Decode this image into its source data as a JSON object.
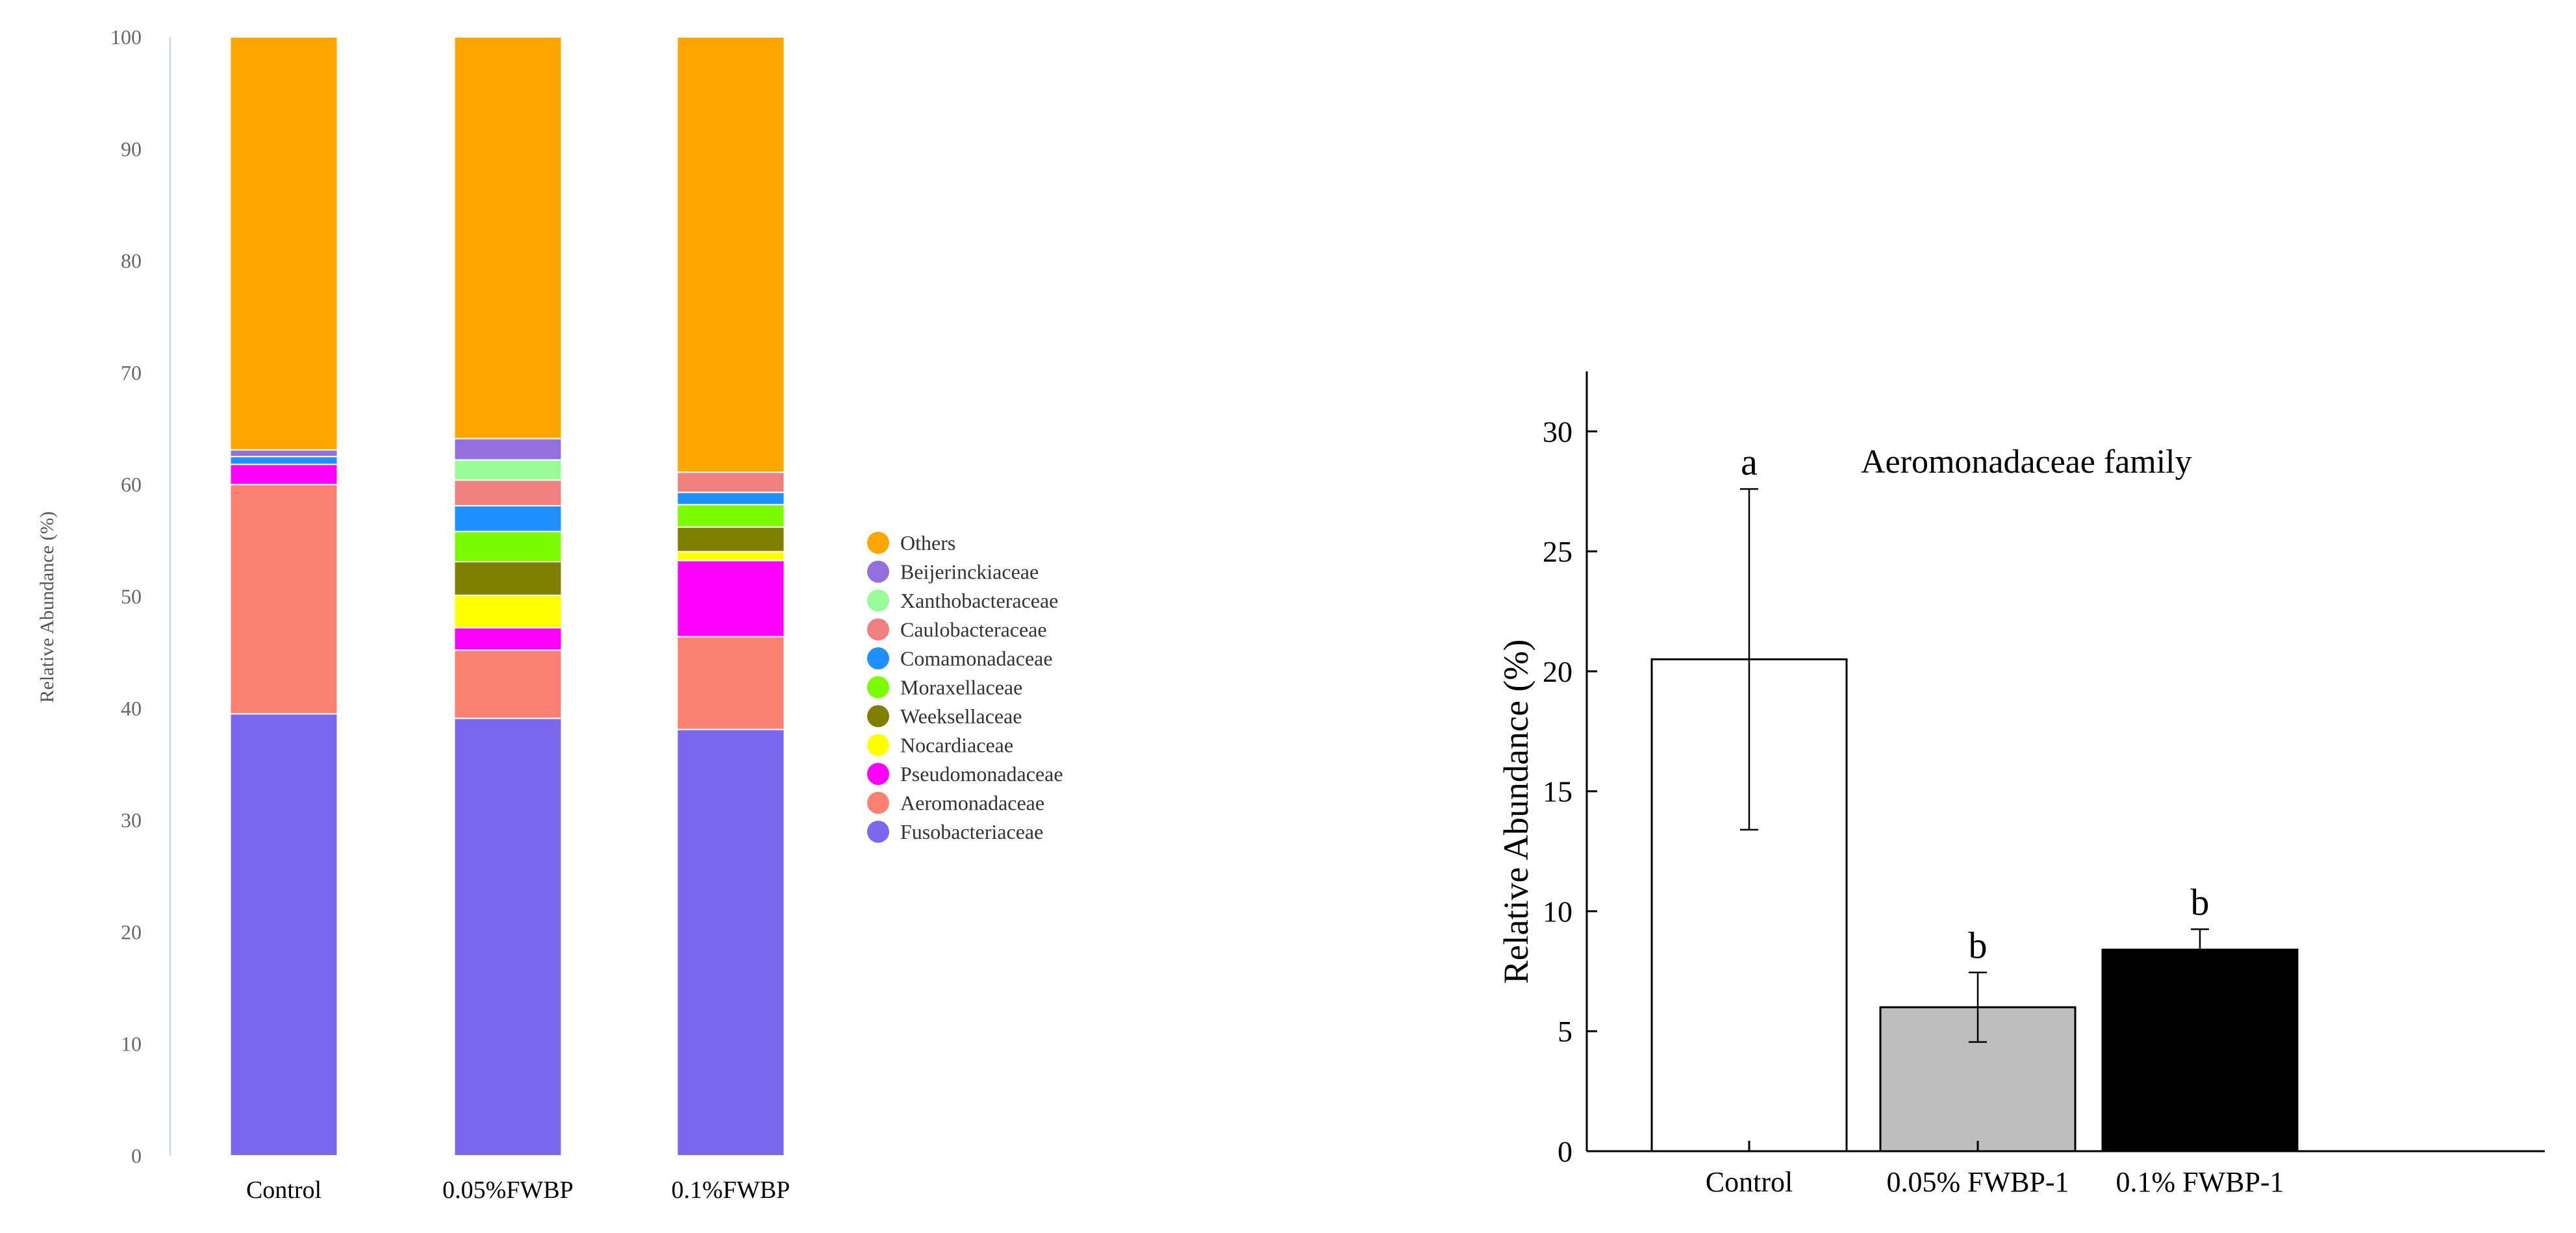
{
  "chart_data": [
    {
      "type": "bar",
      "stacked": true,
      "title": "",
      "xlabel": "",
      "ylabel": "Relative Abundance (%)",
      "ylim": [
        0,
        100
      ],
      "yticks": [
        0,
        10,
        20,
        30,
        40,
        50,
        60,
        70,
        80,
        90,
        100
      ],
      "grid": false,
      "legend_position": "right",
      "categories": [
        "Control",
        "0.05%FWBP",
        "0.1%FWBP"
      ],
      "series": [
        {
          "name": "Fusobacteriaceae",
          "color": "#7B68EE",
          "values": [
            39.5,
            39.1,
            38.1
          ]
        },
        {
          "name": "Aeromonadaceae",
          "color": "#FA8072",
          "values": [
            20.5,
            6.1,
            8.3
          ]
        },
        {
          "name": "Pseudomonadaceae",
          "color": "#FF00FF",
          "values": [
            1.8,
            2.0,
            6.8
          ]
        },
        {
          "name": "Nocardiaceae",
          "color": "#FFFF00",
          "values": [
            0.0,
            2.9,
            0.8
          ]
        },
        {
          "name": "Weeksellaceae",
          "color": "#808000",
          "values": [
            0.0,
            3.0,
            2.2
          ]
        },
        {
          "name": "Moraxellaceae",
          "color": "#7CFC00",
          "values": [
            0.0,
            2.7,
            2.0
          ]
        },
        {
          "name": "Comamonadaceae",
          "color": "#1E90FF",
          "values": [
            0.7,
            2.3,
            1.1
          ]
        },
        {
          "name": "Caulobacteraceae",
          "color": "#F08080",
          "values": [
            0.0,
            2.3,
            1.8
          ]
        },
        {
          "name": "Xanthobacteraceae",
          "color": "#98FB98",
          "values": [
            0.0,
            1.8,
            0.0
          ]
        },
        {
          "name": "Beijerinckiaceae",
          "color": "#9370DB",
          "values": [
            0.6,
            1.9,
            0.0
          ]
        },
        {
          "name": "Others",
          "color": "#FFA500",
          "values": [
            36.9,
            35.9,
            38.9
          ]
        }
      ],
      "legend_order": [
        "Others",
        "Beijerinckiaceae",
        "Xanthobacteraceae",
        "Caulobacteraceae",
        "Comamonadaceae",
        "Moraxellaceae",
        "Weeksellaceae",
        "Nocardiaceae",
        "Pseudomonadaceae",
        "Aeromonadaceae",
        "Fusobacteriaceae"
      ]
    },
    {
      "type": "bar",
      "title": "Aeromonadaceae family",
      "xlabel": "",
      "ylabel": "Relative Abundance (%)",
      "ylim": [
        0,
        32.5
      ],
      "yticks": [
        0,
        5,
        10,
        15,
        20,
        25,
        30
      ],
      "grid": false,
      "categories": [
        "Control",
        "0.05% FWBP-1",
        "0.1% FWBP-1"
      ],
      "values": [
        20.5,
        6.0,
        8.4
      ],
      "errors": [
        7.1,
        1.45,
        0.85
      ],
      "significance": [
        "a",
        "b",
        "b"
      ],
      "colors": [
        "#FFFFFF",
        "#BEBEBE",
        "#000000"
      ]
    }
  ]
}
